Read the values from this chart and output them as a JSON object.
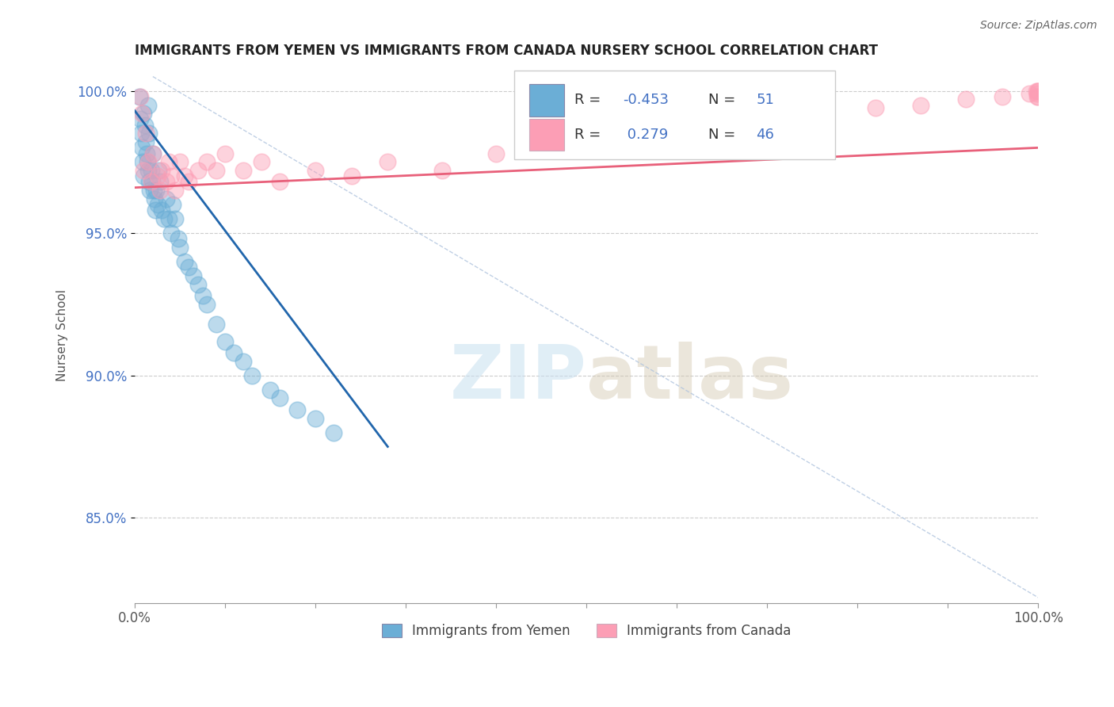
{
  "title": "IMMIGRANTS FROM YEMEN VS IMMIGRANTS FROM CANADA NURSERY SCHOOL CORRELATION CHART",
  "source_text": "Source: ZipAtlas.com",
  "ylabel": "Nursery School",
  "legend_label1": "Immigrants from Yemen",
  "legend_label2": "Immigrants from Canada",
  "r1": -0.453,
  "n1": 51,
  "r2": 0.279,
  "n2": 46,
  "color_yemen": "#6baed6",
  "color_canada": "#fc9eb5",
  "regression_color_yemen": "#2166ac",
  "regression_color_canada": "#e8607a",
  "xlim": [
    0.0,
    1.0
  ],
  "ylim": [
    0.82,
    1.008
  ],
  "yticks": [
    0.85,
    0.9,
    0.95,
    1.0
  ],
  "ytick_labels": [
    "85.0%",
    "90.0%",
    "95.0%",
    "100.0%"
  ],
  "watermark_zip": "ZIP",
  "watermark_atlas": "atlas",
  "background_color": "#ffffff",
  "yemen_x": [
    0.005,
    0.006,
    0.007,
    0.008,
    0.009,
    0.01,
    0.01,
    0.011,
    0.012,
    0.013,
    0.014,
    0.015,
    0.015,
    0.016,
    0.016,
    0.017,
    0.018,
    0.019,
    0.02,
    0.021,
    0.022,
    0.023,
    0.024,
    0.025,
    0.026,
    0.028,
    0.03,
    0.032,
    0.035,
    0.038,
    0.04,
    0.042,
    0.045,
    0.048,
    0.05,
    0.055,
    0.06,
    0.065,
    0.07,
    0.075,
    0.08,
    0.09,
    0.1,
    0.11,
    0.12,
    0.13,
    0.15,
    0.16,
    0.18,
    0.2,
    0.22
  ],
  "yemen_y": [
    0.998,
    0.99,
    0.985,
    0.98,
    0.975,
    0.97,
    0.992,
    0.988,
    0.982,
    0.978,
    0.975,
    0.972,
    0.995,
    0.968,
    0.985,
    0.965,
    0.972,
    0.968,
    0.978,
    0.965,
    0.962,
    0.958,
    0.965,
    0.96,
    0.972,
    0.968,
    0.958,
    0.955,
    0.962,
    0.955,
    0.95,
    0.96,
    0.955,
    0.948,
    0.945,
    0.94,
    0.938,
    0.935,
    0.932,
    0.928,
    0.925,
    0.918,
    0.912,
    0.908,
    0.905,
    0.9,
    0.895,
    0.892,
    0.888,
    0.885,
    0.88
  ],
  "canada_x": [
    0.006,
    0.008,
    0.01,
    0.012,
    0.015,
    0.018,
    0.02,
    0.025,
    0.028,
    0.03,
    0.035,
    0.038,
    0.04,
    0.045,
    0.05,
    0.055,
    0.06,
    0.07,
    0.08,
    0.09,
    0.1,
    0.12,
    0.14,
    0.16,
    0.2,
    0.24,
    0.28,
    0.34,
    0.4,
    0.46,
    0.52,
    0.58,
    0.64,
    0.7,
    0.76,
    0.82,
    0.87,
    0.92,
    0.96,
    0.99,
    0.998,
    0.999,
    0.999,
    1.0,
    1.0,
    1.0
  ],
  "canada_y": [
    0.998,
    0.992,
    0.972,
    0.985,
    0.975,
    0.968,
    0.978,
    0.97,
    0.965,
    0.972,
    0.968,
    0.975,
    0.97,
    0.965,
    0.975,
    0.97,
    0.968,
    0.972,
    0.975,
    0.972,
    0.978,
    0.972,
    0.975,
    0.968,
    0.972,
    0.97,
    0.975,
    0.972,
    0.978,
    0.98,
    0.982,
    0.985,
    0.988,
    0.99,
    0.992,
    0.994,
    0.995,
    0.997,
    0.998,
    0.999,
    1.0,
    0.999,
    0.998,
    1.0,
    1.0,
    0.998
  ],
  "diag_line": [
    [
      0.02,
      1.005
    ],
    [
      1.0,
      0.822
    ]
  ],
  "yemen_reg_line": [
    [
      0.0,
      0.993
    ],
    [
      0.28,
      0.875
    ]
  ],
  "canada_reg_line": [
    [
      0.0,
      0.966
    ],
    [
      1.0,
      0.98
    ]
  ]
}
